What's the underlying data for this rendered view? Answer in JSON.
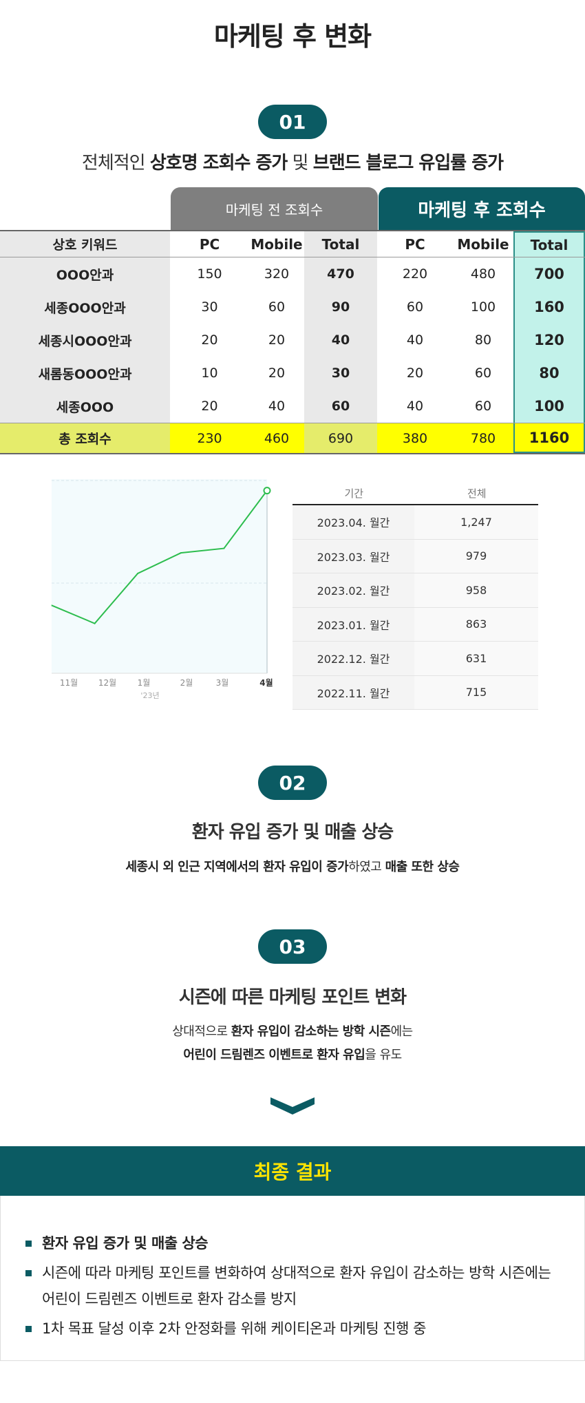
{
  "page_title": "마케팅 후 변화",
  "section1": {
    "badge": "01",
    "heading_pre": "전체적인 ",
    "heading_bold1": "상호명 조회수 증가",
    "heading_mid": " 및 ",
    "heading_bold2": "브랜드 블로그 유입률 증가"
  },
  "table": {
    "header_before": "마케팅 전 조회수",
    "header_after": "마케팅 후 조회수",
    "columns": [
      "상호 키워드",
      "PC",
      "Mobile",
      "Total",
      "PC",
      "Mobile",
      "Total"
    ],
    "rows": [
      [
        "OOO안과",
        "150",
        "320",
        "470",
        "220",
        "480",
        "700"
      ],
      [
        "세종OOO안과",
        "30",
        "60",
        "90",
        "60",
        "100",
        "160"
      ],
      [
        "세종시OOO안과",
        "20",
        "20",
        "40",
        "40",
        "80",
        "120"
      ],
      [
        "새롬동OOO안과",
        "10",
        "20",
        "30",
        "20",
        "60",
        "80"
      ],
      [
        "세종OOO",
        "20",
        "40",
        "60",
        "40",
        "60",
        "100"
      ]
    ],
    "total_row": [
      "총 조회수",
      "230",
      "460",
      "690",
      "380",
      "780",
      "1160"
    ]
  },
  "chart_data": {
    "type": "line",
    "x": [
      "11월",
      "12월",
      "1월",
      "2월",
      "3월",
      "4월"
    ],
    "year_label": "'23년",
    "values": [
      715,
      631,
      863,
      958,
      979,
      1247
    ],
    "ylim": [
      400,
      1300
    ],
    "color": "#2dbd4e"
  },
  "stats_table": {
    "headers": [
      "기간",
      "전체"
    ],
    "rows": [
      [
        "2023.04. 월간",
        "1,247"
      ],
      [
        "2023.03. 월간",
        "979"
      ],
      [
        "2023.02. 월간",
        "958"
      ],
      [
        "2023.01. 월간",
        "863"
      ],
      [
        "2022.12. 월간",
        "631"
      ],
      [
        "2022.11. 월간",
        "715"
      ]
    ]
  },
  "section2": {
    "badge": "02",
    "heading": "환자 유입 증가 및 매출 상승",
    "sub_bold1": "세종시 외 인근 지역에서의 환자 유입이 증가",
    "sub_mid": "하였고 ",
    "sub_bold2": "매출 또한 상승"
  },
  "section3": {
    "badge": "03",
    "heading": "시즌에 따른 마케팅 포인트 변화",
    "line1_pre": "상대적으로 ",
    "line1_bold": "환자 유입이 감소하는 방학 시즌",
    "line1_post": "에는",
    "line2_bold": "어린이 드림렌즈 이벤트로 환자 유입",
    "line2_post": "을 유도"
  },
  "final": {
    "title": "최종 결과",
    "item1": "환자 유입 증가 및 매출 상승",
    "item2_line1": "시즌에 따라 마케팅 포인트를 변화하여 상대적으로 환자 유입이 감소하는 방학 시즌에는",
    "item2_line2": "어린이 드림렌즈 이벤트로 환자 감소를 방지",
    "item3": "1차 목표 달성 이후 2차 안정화를 위해 케이티온과 마케팅 진행 중"
  },
  "colors": {
    "teal": "#0b5b63",
    "grey_header": "#7f7f7f",
    "mint": "#c2f2ea",
    "yellow": "#ffff00",
    "total_row_label_bg": "#e5ec6b",
    "title_yellow": "#ffe400"
  },
  "icons": {
    "chevron": "chevron-down-icon",
    "bullet": "square-bullet-icon"
  }
}
